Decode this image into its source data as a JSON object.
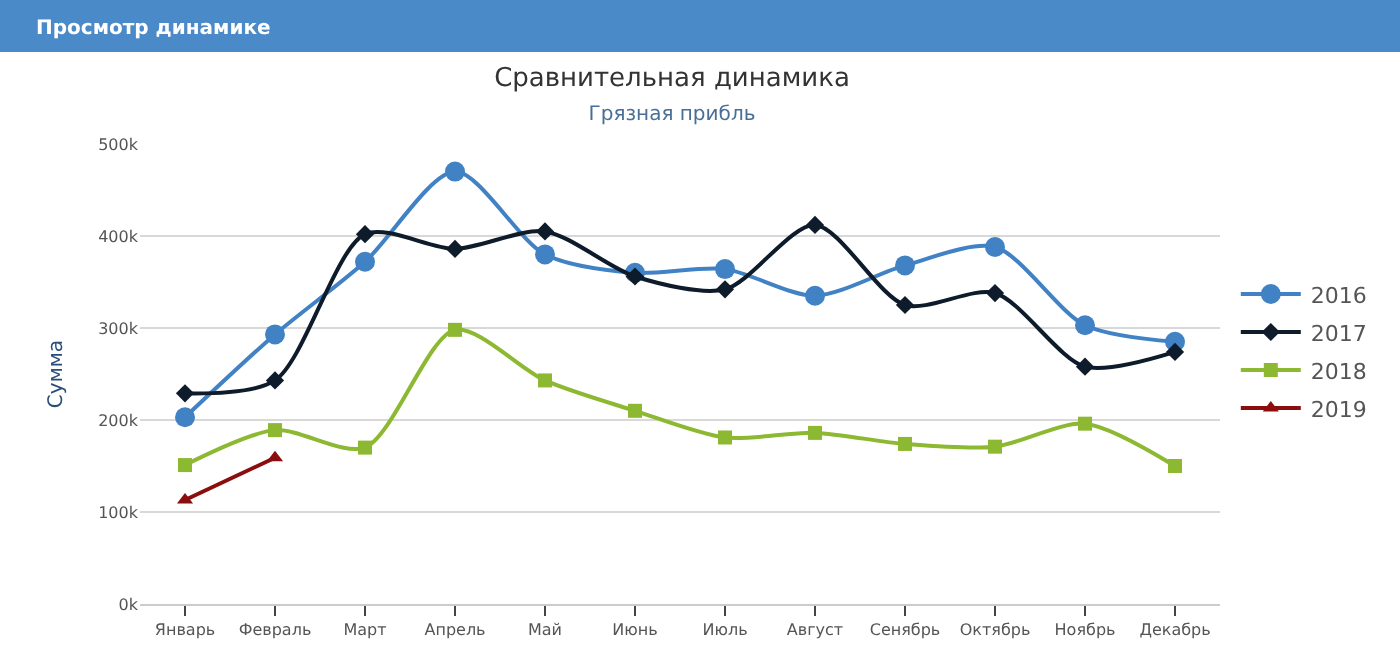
{
  "chart_data": {
    "type": "line",
    "title": "Сравнительная динамика",
    "subtitle": "Грязная прибль",
    "ylabel": "Сумма",
    "annotations": [
      "Просмотр динамике"
    ],
    "categories": [
      "Январь",
      "Февраль",
      "Март",
      "Апрель",
      "Май",
      "Июнь",
      "Июль",
      "Август",
      "Сенябрь",
      "Октябрь",
      "Ноябрь",
      "Декабрь"
    ],
    "series": [
      {
        "name": "2016",
        "color": "#4182c4",
        "marker": "circle",
        "values": [
          203000,
          293000,
          372000,
          470000,
          380000,
          360000,
          364000,
          335000,
          368000,
          388000,
          303000,
          285000
        ]
      },
      {
        "name": "2017",
        "color": "#0d1b2a",
        "marker": "diamond",
        "values": [
          229000,
          243000,
          402000,
          386000,
          405000,
          356000,
          342000,
          412000,
          325000,
          338000,
          258000,
          274000
        ]
      },
      {
        "name": "2018",
        "color": "#8db832",
        "marker": "square",
        "values": [
          151000,
          189000,
          170000,
          298000,
          243000,
          210000,
          181000,
          186000,
          174000,
          171000,
          196000,
          150000
        ]
      },
      {
        "name": "2019",
        "color": "#8b0d0d",
        "marker": "triangle",
        "values": [
          113000,
          159000,
          null,
          null,
          null,
          null,
          null,
          null,
          null,
          null,
          null,
          null
        ]
      }
    ],
    "ylim": [
      0,
      500000
    ],
    "yticks": [
      {
        "value": 0,
        "label": "0k"
      },
      {
        "value": 100000,
        "label": "100k"
      },
      {
        "value": 200000,
        "label": "200k"
      },
      {
        "value": 300000,
        "label": "300k"
      },
      {
        "value": 400000,
        "label": "400k"
      },
      {
        "value": 500000,
        "label": "500k"
      }
    ],
    "grid": "y",
    "legend": "right",
    "line_style": "solid"
  }
}
